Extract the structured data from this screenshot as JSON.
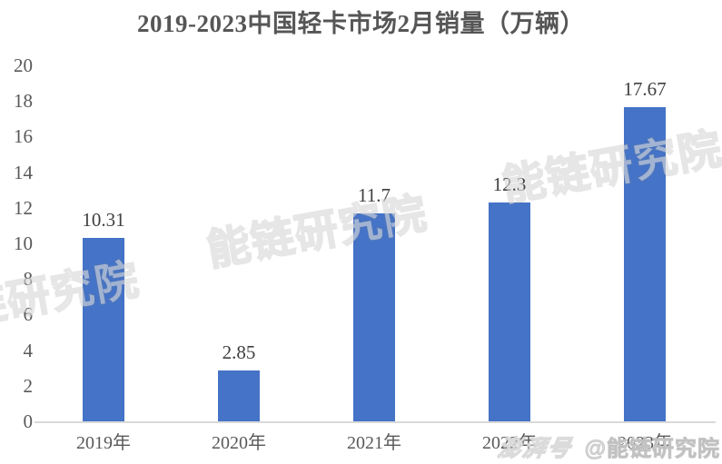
{
  "chart_data": {
    "type": "bar",
    "title": "2019-2023中国轻卡市场2月销量（万辆）",
    "categories": [
      "2019年",
      "2020年",
      "2021年",
      "2022年",
      "2023年"
    ],
    "values": [
      10.31,
      2.85,
      11.7,
      12.3,
      17.67
    ],
    "data_labels": [
      "10.31",
      "2.85",
      "11.7",
      "12.3",
      "17.67"
    ],
    "xlabel": "",
    "ylabel": "",
    "ylim": [
      0,
      20
    ],
    "yticks": [
      0,
      2,
      4,
      6,
      8,
      10,
      12,
      14,
      16,
      18,
      20
    ],
    "grid": false,
    "legend_position": "none",
    "bar_color": "#4473C7",
    "axis_line_color": "#D9D9D9",
    "title_color": "#565656",
    "tick_label_color": "#595959",
    "data_label_color": "#404040"
  },
  "watermarks": {
    "diagonal_text": "能链研究院",
    "badge": {
      "platform": "澎湃号",
      "account": "@能链研究院"
    }
  }
}
